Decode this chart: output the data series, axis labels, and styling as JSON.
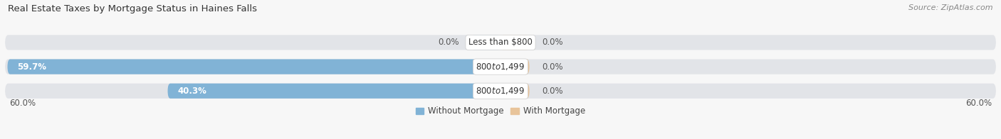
{
  "title": "Real Estate Taxes by Mortgage Status in Haines Falls",
  "source": "Source: ZipAtlas.com",
  "rows": [
    {
      "label": "Less than $800",
      "without_mortgage": 0.0,
      "with_mortgage": 0.0,
      "without_label": "0.0%",
      "with_label": "0.0%"
    },
    {
      "label": "$800 to $1,499",
      "without_mortgage": 59.7,
      "with_mortgage": 0.0,
      "without_label": "59.7%",
      "with_label": "0.0%"
    },
    {
      "label": "$800 to $1,499",
      "without_mortgage": 40.3,
      "with_mortgage": 0.0,
      "without_label": "40.3%",
      "with_label": "0.0%"
    }
  ],
  "x_min": -60.0,
  "x_max": 60.0,
  "x_left_label": "60.0%",
  "x_right_label": "60.0%",
  "color_without": "#81b3d6",
  "color_with": "#e8c49a",
  "bar_height": 0.62,
  "nub_size": 3.5,
  "background_bar_color": "#e2e4e8",
  "background_color": "#f7f7f7",
  "title_fontsize": 9.5,
  "source_fontsize": 8,
  "label_fontsize": 8.5,
  "legend_fontsize": 8.5,
  "tick_fontsize": 8.5
}
